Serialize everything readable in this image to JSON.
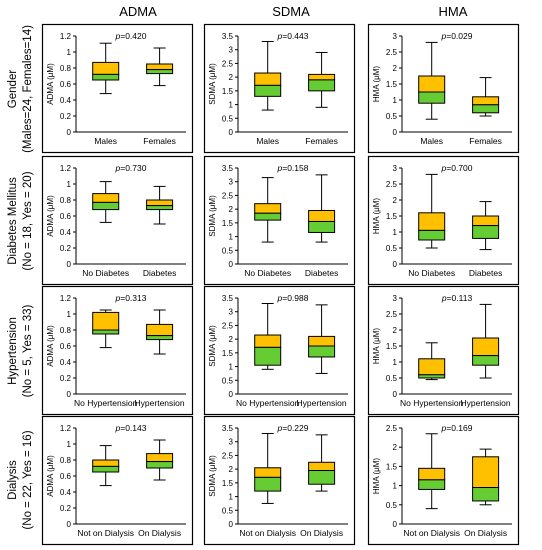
{
  "columns": [
    "ADMA",
    "SDMA",
    "HMA"
  ],
  "rows": [
    {
      "label_line1": "Gender",
      "label_line2": "(Males=24, Females=14)"
    },
    {
      "label_line1": "Diabetes Mellitus",
      "label_line2": "(No = 18, Yes = 20)"
    },
    {
      "label_line1": "Hypertension",
      "label_line2": "(No = 5, Yes = 33)"
    },
    {
      "label_line1": "Dialysis",
      "label_line2": "(No = 22, Yes = 16)"
    }
  ],
  "colors": {
    "upper_box": "#FFC000",
    "lower_box": "#66CC33",
    "frame": "#000000"
  },
  "chart_data": [
    {
      "type": "box",
      "row": 0,
      "col": 0,
      "ylabel": "ADMA (μM)",
      "ylim": [
        0,
        1.2
      ],
      "yticks": [
        "0",
        "0.2",
        "0.4",
        "0.6",
        "0.8",
        "1",
        "1.2"
      ],
      "p_value": "0.420",
      "categories": [
        "Males",
        "Females"
      ],
      "boxes": [
        {
          "min": 0.48,
          "q1": 0.65,
          "median": 0.72,
          "q3": 0.87,
          "max": 1.11
        },
        {
          "min": 0.58,
          "q1": 0.73,
          "median": 0.78,
          "q3": 0.85,
          "max": 1.05
        }
      ]
    },
    {
      "type": "box",
      "row": 0,
      "col": 1,
      "ylabel": "SDMA (μM)",
      "ylim": [
        0,
        3.5
      ],
      "yticks": [
        "0",
        "0.5",
        "1",
        "1.5",
        "2",
        "2.5",
        "3",
        "3.5"
      ],
      "p_value": "0.443",
      "categories": [
        "Males",
        "Females"
      ],
      "boxes": [
        {
          "min": 0.8,
          "q1": 1.3,
          "median": 1.7,
          "q3": 2.15,
          "max": 3.3
        },
        {
          "min": 0.9,
          "q1": 1.5,
          "median": 1.9,
          "q3": 2.1,
          "max": 2.9
        }
      ]
    },
    {
      "type": "box",
      "row": 0,
      "col": 2,
      "ylabel": "HMA (μM)",
      "ylim": [
        0,
        3
      ],
      "yticks": [
        "0",
        "0.5",
        "1",
        "1.5",
        "2",
        "2.5",
        "3"
      ],
      "p_value": "0.029",
      "categories": [
        "Males",
        "Females"
      ],
      "boxes": [
        {
          "min": 0.4,
          "q1": 0.9,
          "median": 1.25,
          "q3": 1.75,
          "max": 2.8
        },
        {
          "min": 0.5,
          "q1": 0.6,
          "median": 0.85,
          "q3": 1.1,
          "max": 1.7
        }
      ]
    },
    {
      "type": "box",
      "row": 1,
      "col": 0,
      "ylabel": "ADMA (μM)",
      "ylim": [
        0,
        1.2
      ],
      "yticks": [
        "0",
        "0.2",
        "0.4",
        "0.6",
        "0.8",
        "1",
        "1.2"
      ],
      "p_value": "0.730",
      "categories": [
        "No Diabetes",
        "Diabetes"
      ],
      "boxes": [
        {
          "min": 0.52,
          "q1": 0.68,
          "median": 0.77,
          "q3": 0.88,
          "max": 1.03
        },
        {
          "min": 0.5,
          "q1": 0.68,
          "median": 0.73,
          "q3": 0.8,
          "max": 0.97
        }
      ]
    },
    {
      "type": "box",
      "row": 1,
      "col": 1,
      "ylabel": "SDMA (μM)",
      "ylim": [
        0,
        3.5
      ],
      "yticks": [
        "0",
        "0.5",
        "1",
        "1.5",
        "2",
        "2.5",
        "3",
        "3.5"
      ],
      "p_value": "0.158",
      "categories": [
        "No Diabetes",
        "Diabetes"
      ],
      "boxes": [
        {
          "min": 0.8,
          "q1": 1.6,
          "median": 1.85,
          "q3": 2.2,
          "max": 3.15
        },
        {
          "min": 0.8,
          "q1": 1.15,
          "median": 1.55,
          "q3": 1.95,
          "max": 3.25
        }
      ]
    },
    {
      "type": "box",
      "row": 1,
      "col": 2,
      "ylabel": "HMA (μM)",
      "ylim": [
        0,
        3
      ],
      "yticks": [
        "0",
        "0.5",
        "1",
        "1.5",
        "2",
        "2.5",
        "3"
      ],
      "p_value": "0.700",
      "categories": [
        "No Diabetes",
        "Diabetes"
      ],
      "boxes": [
        {
          "min": 0.5,
          "q1": 0.75,
          "median": 1.05,
          "q3": 1.6,
          "max": 2.8
        },
        {
          "min": 0.45,
          "q1": 0.8,
          "median": 1.2,
          "q3": 1.5,
          "max": 1.95
        }
      ]
    },
    {
      "type": "box",
      "row": 2,
      "col": 0,
      "ylabel": "ADMA (μM)",
      "ylim": [
        0,
        1.2
      ],
      "yticks": [
        "0",
        "0.2",
        "0.4",
        "0.6",
        "0.8",
        "1",
        "1.2"
      ],
      "p_value": "0.313",
      "categories": [
        "No Hypertension",
        "Hypertension"
      ],
      "boxes": [
        {
          "min": 0.58,
          "q1": 0.75,
          "median": 0.8,
          "q3": 1.02,
          "max": 1.05
        },
        {
          "min": 0.5,
          "q1": 0.68,
          "median": 0.73,
          "q3": 0.87,
          "max": 1.05
        }
      ]
    },
    {
      "type": "box",
      "row": 2,
      "col": 1,
      "ylabel": "SDMA (μM)",
      "ylim": [
        0,
        3.5
      ],
      "yticks": [
        "0",
        "0.5",
        "1",
        "1.5",
        "2",
        "2.5",
        "3",
        "3.5"
      ],
      "p_value": "0.988",
      "categories": [
        "No Hypertension",
        "Hypertension"
      ],
      "boxes": [
        {
          "min": 0.9,
          "q1": 1.05,
          "median": 1.7,
          "q3": 2.15,
          "max": 3.3
        },
        {
          "min": 0.75,
          "q1": 1.35,
          "median": 1.75,
          "q3": 2.1,
          "max": 3.25
        }
      ]
    },
    {
      "type": "box",
      "row": 2,
      "col": 2,
      "ylabel": "HMA (μM)",
      "ylim": [
        0,
        3
      ],
      "yticks": [
        "0",
        "0.5",
        "1",
        "1.5",
        "2",
        "2.5",
        "3"
      ],
      "p_value": "0.113",
      "categories": [
        "No Hypertension",
        "Hypertension"
      ],
      "boxes": [
        {
          "min": 0.45,
          "q1": 0.5,
          "median": 0.6,
          "q3": 1.1,
          "max": 1.6
        },
        {
          "min": 0.5,
          "q1": 0.9,
          "median": 1.2,
          "q3": 1.75,
          "max": 2.8
        }
      ]
    },
    {
      "type": "box",
      "row": 3,
      "col": 0,
      "ylabel": "ADMA (μM)",
      "ylim": [
        0,
        1.2
      ],
      "yticks": [
        "0",
        "0.2",
        "0.4",
        "0.6",
        "0.8",
        "1",
        "1.2"
      ],
      "p_value": "0.143",
      "categories": [
        "Not on Dialysis",
        "On Dialysis"
      ],
      "boxes": [
        {
          "min": 0.48,
          "q1": 0.65,
          "median": 0.72,
          "q3": 0.8,
          "max": 0.98
        },
        {
          "min": 0.55,
          "q1": 0.7,
          "median": 0.78,
          "q3": 0.88,
          "max": 1.05
        }
      ]
    },
    {
      "type": "box",
      "row": 3,
      "col": 1,
      "ylabel": "SDMA (μM)",
      "ylim": [
        0,
        3.5
      ],
      "yticks": [
        "0",
        "0.5",
        "1",
        "1.5",
        "2",
        "2.5",
        "3",
        "3.5"
      ],
      "p_value": "0.229",
      "categories": [
        "Not on Dialysis",
        "On Dialysis"
      ],
      "boxes": [
        {
          "min": 0.75,
          "q1": 1.2,
          "median": 1.7,
          "q3": 2.05,
          "max": 3.3
        },
        {
          "min": 1.2,
          "q1": 1.45,
          "median": 1.95,
          "q3": 2.25,
          "max": 3.25
        }
      ]
    },
    {
      "type": "box",
      "row": 3,
      "col": 2,
      "ylabel": "HMA (μM)",
      "ylim": [
        0,
        2.5
      ],
      "yticks": [
        "0",
        "0.5",
        "1",
        "1.5",
        "2",
        "2.5"
      ],
      "p_value": "0.169",
      "categories": [
        "Not on Dialysis",
        "On Dialysis"
      ],
      "boxes": [
        {
          "min": 0.4,
          "q1": 0.9,
          "median": 1.15,
          "q3": 1.45,
          "max": 2.35
        },
        {
          "min": 0.5,
          "q1": 0.6,
          "median": 0.95,
          "q3": 1.75,
          "max": 1.95
        }
      ]
    }
  ]
}
